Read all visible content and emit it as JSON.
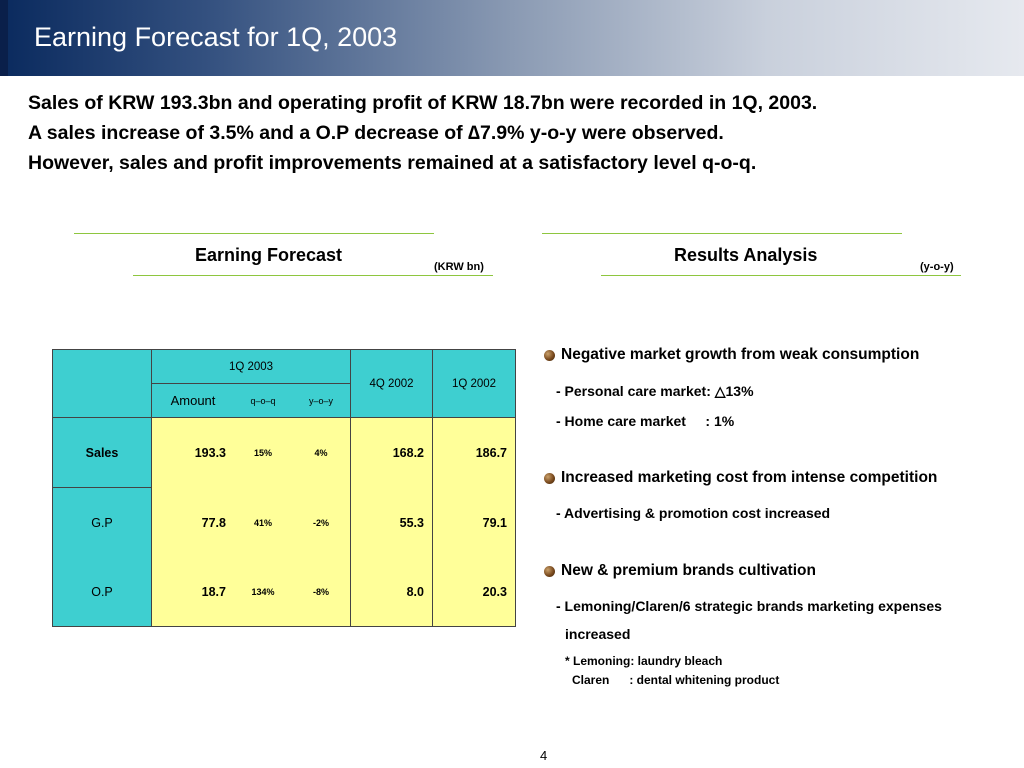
{
  "slide": {
    "title": "Earning Forecast for 1Q, 2003",
    "page_number": "4"
  },
  "summary": [
    "Sales of KRW 193.3bn and operating profit of KRW 18.7bn were recorded in 1Q, 2003.",
    "A sales increase of 3.5% and a O.P decrease of ∆7.9% y-o-y were observed.",
    "However, sales and profit improvements remained at a satisfactory level q-o-q."
  ],
  "earning_forecast": {
    "title": "Earning Forecast",
    "unit": "(KRW bn)",
    "header": {
      "group": "1Q 2003",
      "amount": "Amount",
      "qoq": "q–o–q",
      "yoy": "y–o–y",
      "col_4q2002": "4Q 2002",
      "col_1q2002": "1Q 2002"
    },
    "rows": [
      {
        "label": "Sales",
        "amount": "193.3",
        "qoq": "15%",
        "yoy": "4%",
        "q4_2002": "168.2",
        "q1_2002": "186.7"
      },
      {
        "label": "G.P",
        "amount": "77.8",
        "qoq": "41%",
        "yoy": "-2%",
        "q4_2002": "55.3",
        "q1_2002": "79.1"
      },
      {
        "label": "O.P",
        "amount": "18.7",
        "qoq": "134%",
        "yoy": "-8%",
        "q4_2002": "8.0",
        "q1_2002": "20.3"
      }
    ]
  },
  "results_analysis": {
    "title": "Results Analysis",
    "unit": "(y-o-y)",
    "bullet1": "Negative market growth from weak consumption",
    "bullet1_sub1": "- Personal care market: △13%",
    "bullet1_sub2": "- Home care market     : 1%",
    "bullet2": "Increased marketing cost from intense competition",
    "bullet2_sub1": "- Advertising & promotion cost increased",
    "bullet3": "New & premium brands cultivation",
    "bullet3_sub1": "- Lemoning/Claren/6 strategic brands marketing expenses",
    "bullet3_sub2": "increased",
    "note1": "* Lemoning: laundry bleach",
    "note2": "Claren      : dental whitening product"
  },
  "colors": {
    "header_dark": "#0a2a5e",
    "table_header": "#3ecfd0",
    "table_body": "#ffff99",
    "rule_green": "#8ec63f"
  }
}
